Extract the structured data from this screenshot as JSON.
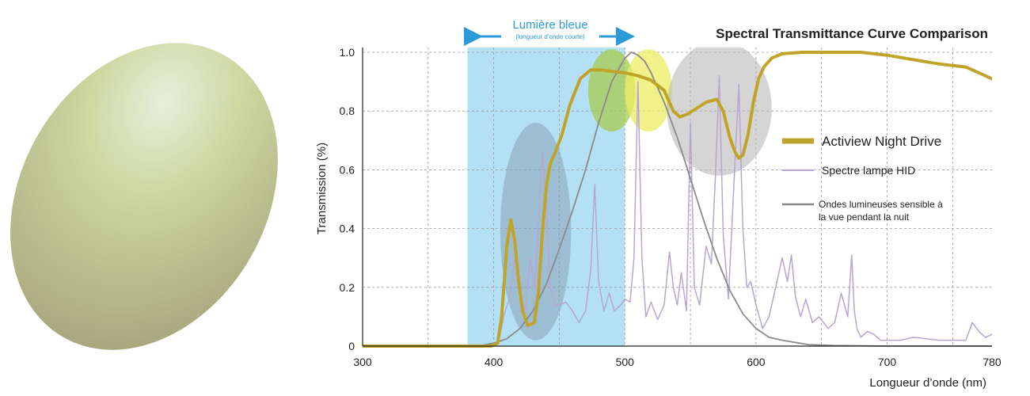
{
  "chart_data": {
    "type": "line",
    "title": "Spectral Transmittance Curve Comparison",
    "xlabel": "Longueur d’onde (nm)",
    "ylabel": "Transmission (%)",
    "xlim": [
      300,
      780
    ],
    "ylim": [
      0,
      1.0
    ],
    "x_ticks": [
      "300",
      "400",
      "500",
      "600",
      "700",
      "780"
    ],
    "y_ticks": [
      "0",
      "0.2",
      "0.4",
      "0.6",
      "0.8",
      "1.0"
    ],
    "grid": true,
    "legend_position": "right",
    "blue_band": {
      "label": "Lumière bleue",
      "sublabel": "(longueur d’onde courte)",
      "range": [
        380,
        500
      ],
      "color": "#b3e0f5"
    },
    "highlights": [
      {
        "name": "blue-peak-ellipse",
        "cx": 432,
        "cy": 0.39,
        "rx": 27,
        "ry": 0.37,
        "color": "#8aa3b4",
        "opacity": 0.55
      },
      {
        "name": "green-ellipse",
        "cx": 490,
        "cy": 0.87,
        "rx": 18,
        "ry": 0.14,
        "color": "#a7cc4e",
        "opacity": 0.75
      },
      {
        "name": "yellow-ellipse",
        "cx": 518,
        "cy": 0.87,
        "rx": 18,
        "ry": 0.14,
        "color": "#ecec62",
        "opacity": 0.75
      },
      {
        "name": "gray-ellipse",
        "cx": 572,
        "cy": 0.81,
        "rx": 40,
        "ry": 0.23,
        "color": "#b3b3b3",
        "opacity": 0.55
      }
    ],
    "series": [
      {
        "name": "Actiview  Night Drive",
        "color": "#c0a42a",
        "width": 4,
        "x": [
          300,
          380,
          398,
          403,
          406,
          410,
          413,
          416,
          419,
          422,
          426,
          431,
          434,
          437,
          440,
          443,
          447,
          452,
          458,
          466,
          474,
          482,
          490,
          500,
          510,
          520,
          530,
          537,
          542,
          548,
          555,
          562,
          570,
          575,
          580,
          584,
          587,
          590,
          594,
          598,
          602,
          606,
          612,
          620,
          635,
          650,
          665,
          680,
          700,
          720,
          740,
          760,
          780
        ],
        "y": [
          0,
          0,
          0,
          0.01,
          0.1,
          0.34,
          0.43,
          0.36,
          0.22,
          0.12,
          0.07,
          0.08,
          0.18,
          0.38,
          0.54,
          0.62,
          0.66,
          0.72,
          0.82,
          0.91,
          0.94,
          0.94,
          0.935,
          0.93,
          0.92,
          0.905,
          0.87,
          0.8,
          0.78,
          0.79,
          0.81,
          0.83,
          0.84,
          0.8,
          0.71,
          0.66,
          0.64,
          0.65,
          0.72,
          0.83,
          0.91,
          0.95,
          0.98,
          0.995,
          1.0,
          1.0,
          1.0,
          1.0,
          0.99,
          0.975,
          0.96,
          0.95,
          0.91
        ]
      },
      {
        "name": "Spectre lampe HID",
        "color": "#b7a6d2",
        "width": 1.5,
        "x": [
          300,
          400,
          404,
          408,
          412,
          416,
          420,
          424,
          428,
          431,
          434,
          437,
          440,
          443,
          447,
          450,
          455,
          460,
          465,
          470,
          474,
          477,
          480,
          484,
          488,
          492,
          497,
          500,
          504,
          507,
          510,
          513,
          516,
          520,
          525,
          530,
          534,
          537,
          540,
          543,
          547,
          550,
          553,
          557,
          562,
          566,
          569,
          572,
          575,
          579,
          584,
          587,
          590,
          593,
          596,
          600,
          605,
          610,
          615,
          620,
          624,
          627,
          630,
          634,
          638,
          643,
          648,
          655,
          660,
          665,
          670,
          673,
          675,
          677,
          680,
          685,
          690,
          695,
          700,
          710,
          720,
          740,
          760,
          765,
          770,
          775,
          780
        ],
        "y": [
          0,
          0,
          0.02,
          0.11,
          0.16,
          0.3,
          0.18,
          0.12,
          0.3,
          0.19,
          0.4,
          0.66,
          0.48,
          0.2,
          0.14,
          0.14,
          0.15,
          0.12,
          0.08,
          0.12,
          0.26,
          0.55,
          0.22,
          0.12,
          0.18,
          0.12,
          0.14,
          0.16,
          0.15,
          0.3,
          0.9,
          0.3,
          0.1,
          0.15,
          0.09,
          0.14,
          0.32,
          0.2,
          0.14,
          0.25,
          0.12,
          0.76,
          0.2,
          0.14,
          0.34,
          0.28,
          0.57,
          0.92,
          0.38,
          0.16,
          0.63,
          0.89,
          0.4,
          0.2,
          0.22,
          0.14,
          0.06,
          0.1,
          0.2,
          0.3,
          0.22,
          0.31,
          0.17,
          0.1,
          0.16,
          0.08,
          0.1,
          0.06,
          0.08,
          0.18,
          0.1,
          0.31,
          0.12,
          0.06,
          0.03,
          0.05,
          0.04,
          0.02,
          0.02,
          0.02,
          0.03,
          0.02,
          0.02,
          0.08,
          0.05,
          0.03,
          0.04
        ]
      },
      {
        "name": "Ondes lumineuses sensible à la vue pendant la nuit",
        "color": "#8a8a8a",
        "width": 1.8,
        "x": [
          300,
          380,
          390,
          400,
          410,
          420,
          430,
          440,
          450,
          460,
          470,
          480,
          490,
          500,
          505,
          510,
          515,
          520,
          530,
          540,
          550,
          560,
          570,
          580,
          590,
          600,
          610,
          620,
          640,
          660,
          680,
          700,
          780
        ],
        "y": [
          0,
          0,
          0.002,
          0.01,
          0.025,
          0.06,
          0.12,
          0.21,
          0.33,
          0.46,
          0.6,
          0.76,
          0.9,
          0.98,
          1.0,
          0.99,
          0.97,
          0.93,
          0.83,
          0.71,
          0.57,
          0.43,
          0.3,
          0.19,
          0.11,
          0.06,
          0.03,
          0.02,
          0.005,
          0.002,
          0.001,
          0,
          0
        ]
      }
    ]
  },
  "legend": {
    "items": [
      {
        "label": "Actiview  Night Drive",
        "color": "#c0a42a"
      },
      {
        "label": "Spectre lampe HID",
        "color": "#b7a6d2"
      },
      {
        "label_lines": [
          "Ondes lumineuses sensible à",
          "la vue pendant la nuit"
        ],
        "color": "#8a8a8a"
      }
    ]
  },
  "lens": {
    "color_light": "#e8eedd",
    "color_mid": "#cdd79f",
    "color_dark": "#a5a47c"
  }
}
